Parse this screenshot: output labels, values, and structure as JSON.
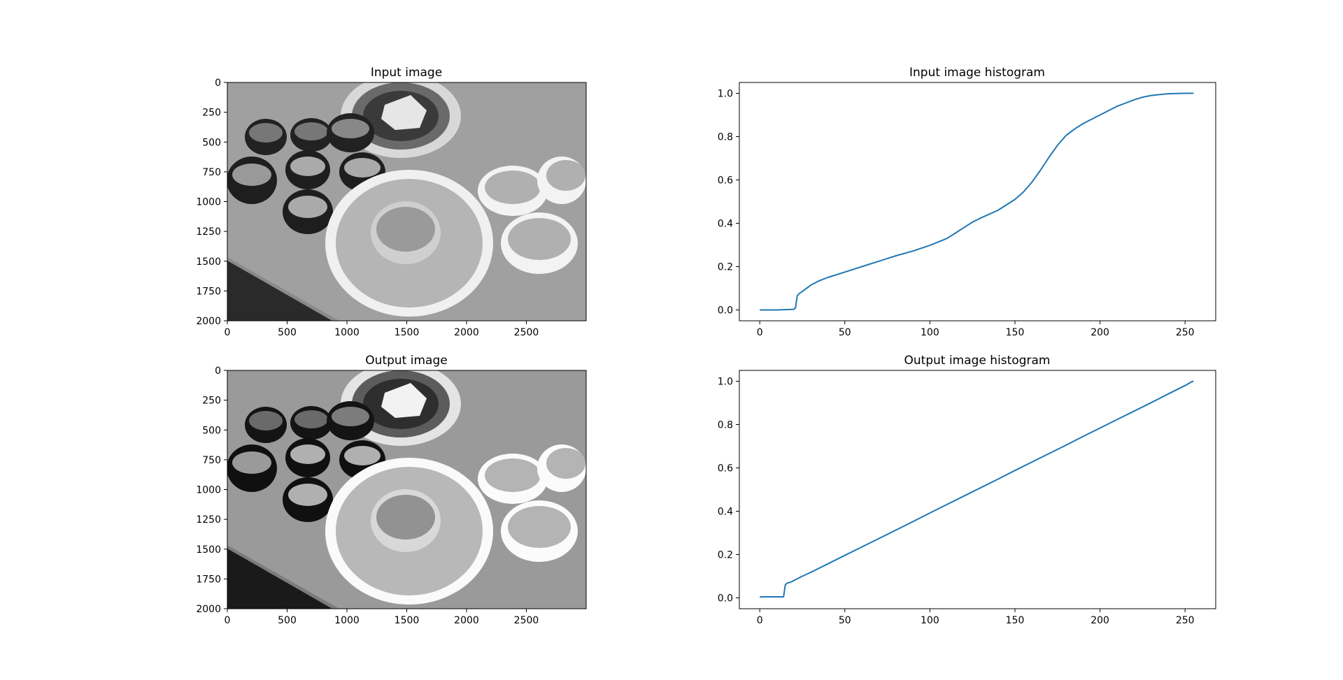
{
  "colors": {
    "line": "#1f77b4",
    "axis": "#000000",
    "background": "#ffffff"
  },
  "chart_data": [
    {
      "type": "image",
      "title": "Input image",
      "xlim": [
        0,
        3000
      ],
      "ylim": [
        2000,
        0
      ],
      "xticks": [
        0,
        500,
        1000,
        1500,
        2000,
        2500
      ],
      "yticks": [
        0,
        250,
        500,
        750,
        1000,
        1250,
        1500,
        1750,
        2000
      ],
      "content": "grayscale photograph of a Korean barbecue table setting"
    },
    {
      "type": "line",
      "title": "Input image histogram",
      "xlim": [
        -12,
        268
      ],
      "ylim": [
        -0.05,
        1.05
      ],
      "xticks": [
        0,
        50,
        100,
        150,
        200,
        250
      ],
      "yticks": [
        0.0,
        0.2,
        0.4,
        0.6,
        0.8,
        1.0
      ],
      "series": [
        {
          "x": [
            0,
            10,
            20,
            21,
            22,
            23,
            25,
            30,
            35,
            40,
            50,
            60,
            70,
            80,
            90,
            100,
            110,
            115,
            120,
            125,
            130,
            140,
            150,
            155,
            160,
            165,
            170,
            175,
            180,
            185,
            190,
            200,
            210,
            215,
            220,
            225,
            230,
            240,
            250,
            255
          ],
          "values": [
            0.0,
            0.0,
            0.003,
            0.01,
            0.065,
            0.075,
            0.085,
            0.115,
            0.135,
            0.15,
            0.175,
            0.2,
            0.225,
            0.25,
            0.272,
            0.298,
            0.33,
            0.355,
            0.38,
            0.405,
            0.425,
            0.46,
            0.51,
            0.545,
            0.59,
            0.645,
            0.705,
            0.76,
            0.805,
            0.835,
            0.86,
            0.9,
            0.94,
            0.955,
            0.97,
            0.982,
            0.99,
            0.998,
            1.0,
            1.0
          ]
        }
      ]
    },
    {
      "type": "image",
      "title": "Output image",
      "xlim": [
        0,
        3000
      ],
      "ylim": [
        2000,
        0
      ],
      "xticks": [
        0,
        500,
        1000,
        1500,
        2000,
        2500
      ],
      "yticks": [
        0,
        250,
        500,
        750,
        1000,
        1250,
        1500,
        1750,
        2000
      ],
      "content": "histogram-equalized grayscale photograph of the same table setting"
    },
    {
      "type": "line",
      "title": "Output image histogram",
      "xlim": [
        -12,
        268
      ],
      "ylim": [
        -0.05,
        1.05
      ],
      "xticks": [
        0,
        50,
        100,
        150,
        200,
        250
      ],
      "yticks": [
        0.0,
        0.2,
        0.4,
        0.6,
        0.8,
        1.0
      ],
      "series": [
        {
          "x": [
            0,
            1,
            5,
            10,
            14,
            15,
            16,
            18,
            20,
            25,
            30,
            40,
            50,
            60,
            70,
            80,
            90,
            100,
            110,
            120,
            130,
            140,
            150,
            160,
            170,
            180,
            190,
            200,
            210,
            220,
            230,
            240,
            250,
            254,
            255
          ],
          "values": [
            0.003,
            0.005,
            0.005,
            0.005,
            0.005,
            0.06,
            0.068,
            0.072,
            0.08,
            0.1,
            0.118,
            0.157,
            0.196,
            0.235,
            0.274,
            0.313,
            0.352,
            0.392,
            0.431,
            0.47,
            0.509,
            0.548,
            0.588,
            0.627,
            0.666,
            0.705,
            0.745,
            0.784,
            0.823,
            0.862,
            0.901,
            0.941,
            0.98,
            0.998,
            1.0
          ]
        }
      ]
    }
  ]
}
